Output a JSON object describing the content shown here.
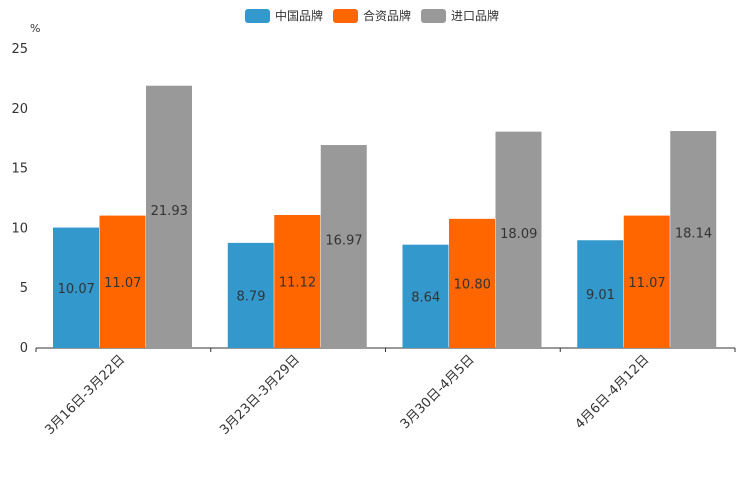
{
  "chart_data": {
    "type": "bar",
    "unit_label": "%",
    "categories": [
      "3月16日-3月22日",
      "3月23日-3月29日",
      "3月30日-4月5日",
      "4月6日-4月12日"
    ],
    "series": [
      {
        "name": "中国品牌",
        "color": "#3399CC",
        "values": [
          10.07,
          8.79,
          8.64,
          9.01
        ],
        "labels": [
          "10.07",
          "8.79",
          "8.64",
          "9.01"
        ]
      },
      {
        "name": "合资品牌",
        "color": "#FF6600",
        "values": [
          11.07,
          11.12,
          10.8,
          11.07
        ],
        "labels": [
          "11.07",
          "11.12",
          "10.80",
          "11.07"
        ]
      },
      {
        "name": "进口品牌",
        "color": "#999999",
        "values": [
          21.93,
          16.97,
          18.09,
          18.14
        ],
        "labels": [
          "21.93",
          "16.97",
          "18.09",
          "18.14"
        ]
      }
    ],
    "ylim": [
      0,
      25
    ],
    "yticks": [
      "0",
      "5",
      "10",
      "15",
      "20",
      "25"
    ],
    "legend_position": "top-center",
    "grid": false
  }
}
